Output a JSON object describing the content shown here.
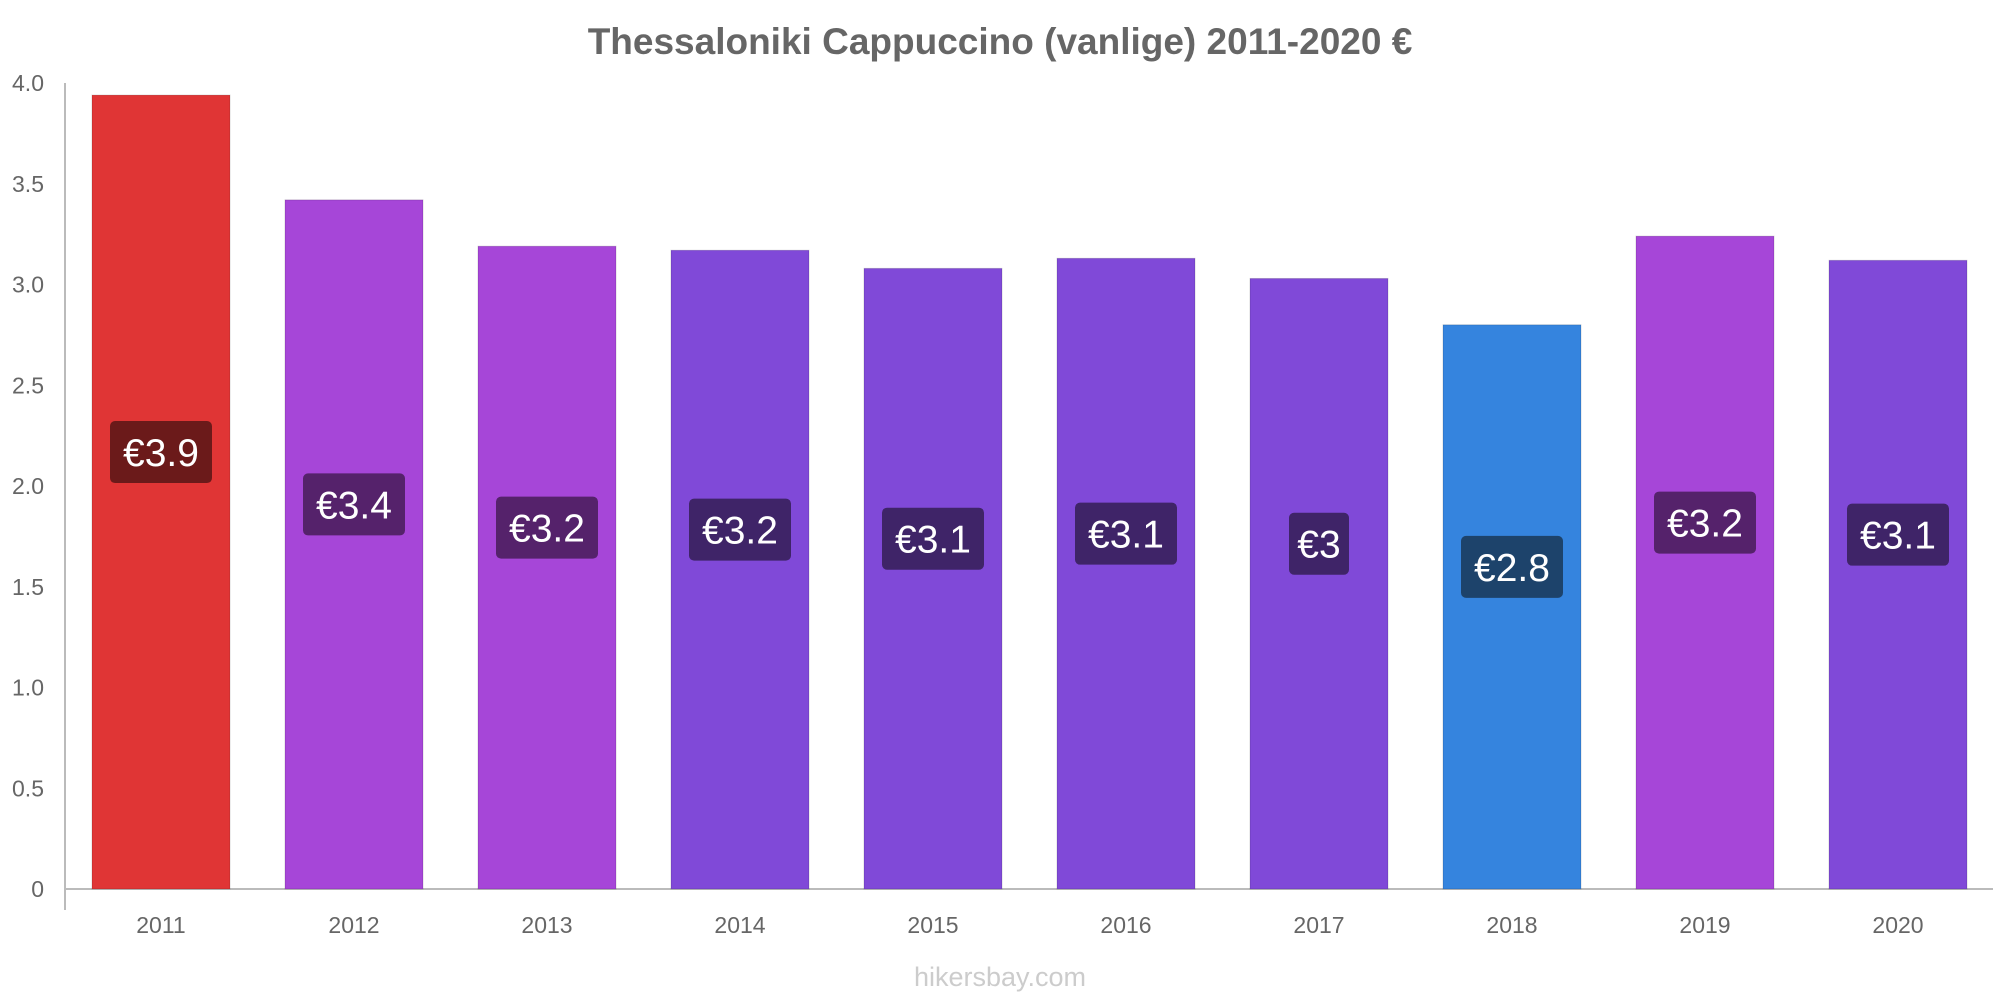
{
  "chart_data": {
    "type": "bar",
    "title": "Thessaloniki Cappuccino (vanlige) 2011-2020 €",
    "xlabel": "",
    "ylabel": "",
    "ylim": [
      0,
      4.0
    ],
    "yticks": [
      "0",
      "0.5",
      "1.0",
      "1.5",
      "2.0",
      "2.5",
      "3.0",
      "3.5",
      "4.0"
    ],
    "categories": [
      "2011",
      "2012",
      "2013",
      "2014",
      "2015",
      "2016",
      "2017",
      "2018",
      "2019",
      "2020"
    ],
    "values": [
      3.94,
      3.42,
      3.19,
      3.17,
      3.08,
      3.13,
      3.03,
      2.8,
      3.24,
      3.12
    ],
    "labels": [
      "€3.9",
      "€3.4",
      "€3.2",
      "€3.2",
      "€3.1",
      "€3.1",
      "€3",
      "€2.8",
      "€3.2",
      "€3.1"
    ],
    "bar_colors": [
      "#e03535",
      "#a646d8",
      "#a646d8",
      "#8049d8",
      "#8049d8",
      "#8049d8",
      "#8049d8",
      "#3584de",
      "#a646d8",
      "#8049d8"
    ],
    "label_colors": [
      "#6b1a1a",
      "#55226b",
      "#55226b",
      "#3f2468",
      "#3f2468",
      "#3f2468",
      "#3f2468",
      "#1d436b",
      "#55226b",
      "#3f2468"
    ],
    "grid": false,
    "legend": "none"
  },
  "watermark": "hikersbay.com"
}
